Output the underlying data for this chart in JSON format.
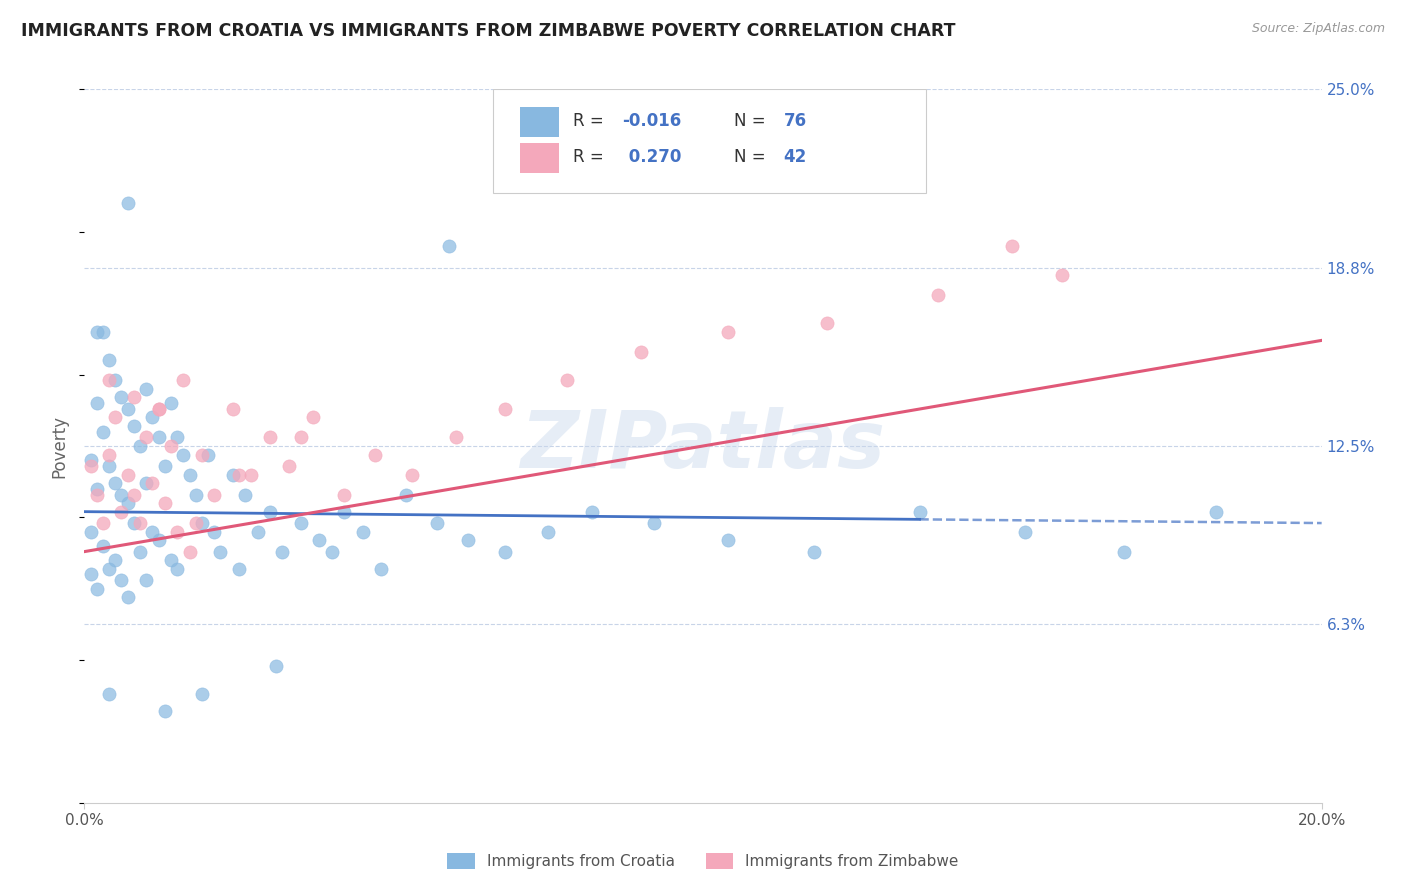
{
  "title": "IMMIGRANTS FROM CROATIA VS IMMIGRANTS FROM ZIMBABWE POVERTY CORRELATION CHART",
  "source": "Source: ZipAtlas.com",
  "ylabel": "Poverty",
  "watermark": "ZIPatlas",
  "xlim": [
    0.0,
    0.2
  ],
  "ylim": [
    0.0,
    0.25
  ],
  "ytick_right_labels": [
    "25.0%",
    "18.8%",
    "12.5%",
    "6.3%"
  ],
  "ytick_right_values": [
    0.25,
    0.1875,
    0.125,
    0.0625
  ],
  "croatia_color": "#88b8e0",
  "zimbabwe_color": "#f4a8bb",
  "trendline_croatia_color": "#4472c4",
  "trendline_zimbabwe_color": "#e05878",
  "background_color": "#ffffff",
  "grid_color": "#c8d4e8",
  "title_color": "#222222",
  "axis_label_color": "#666666",
  "right_axis_color": "#4472c4",
  "croatia_scatter_x": [
    0.001,
    0.001,
    0.001,
    0.002,
    0.002,
    0.002,
    0.003,
    0.003,
    0.003,
    0.004,
    0.004,
    0.004,
    0.005,
    0.005,
    0.005,
    0.006,
    0.006,
    0.006,
    0.007,
    0.007,
    0.007,
    0.008,
    0.008,
    0.009,
    0.009,
    0.01,
    0.01,
    0.01,
    0.011,
    0.011,
    0.012,
    0.012,
    0.013,
    0.014,
    0.014,
    0.015,
    0.015,
    0.016,
    0.017,
    0.018,
    0.019,
    0.02,
    0.021,
    0.022,
    0.024,
    0.025,
    0.026,
    0.028,
    0.03,
    0.032,
    0.035,
    0.038,
    0.04,
    0.042,
    0.045,
    0.048,
    0.052,
    0.057,
    0.062,
    0.068,
    0.075,
    0.082,
    0.092,
    0.104,
    0.118,
    0.135,
    0.152,
    0.168,
    0.183,
    0.059,
    0.031,
    0.019,
    0.013,
    0.007,
    0.004,
    0.002
  ],
  "croatia_scatter_y": [
    0.12,
    0.095,
    0.08,
    0.14,
    0.11,
    0.075,
    0.165,
    0.13,
    0.09,
    0.155,
    0.118,
    0.082,
    0.148,
    0.112,
    0.085,
    0.142,
    0.108,
    0.078,
    0.138,
    0.105,
    0.072,
    0.132,
    0.098,
    0.125,
    0.088,
    0.145,
    0.112,
    0.078,
    0.135,
    0.095,
    0.128,
    0.092,
    0.118,
    0.14,
    0.085,
    0.128,
    0.082,
    0.122,
    0.115,
    0.108,
    0.098,
    0.122,
    0.095,
    0.088,
    0.115,
    0.082,
    0.108,
    0.095,
    0.102,
    0.088,
    0.098,
    0.092,
    0.088,
    0.102,
    0.095,
    0.082,
    0.108,
    0.098,
    0.092,
    0.088,
    0.095,
    0.102,
    0.098,
    0.092,
    0.088,
    0.102,
    0.095,
    0.088,
    0.102,
    0.195,
    0.048,
    0.038,
    0.032,
    0.21,
    0.038,
    0.165
  ],
  "zimbabwe_scatter_x": [
    0.001,
    0.002,
    0.003,
    0.004,
    0.005,
    0.006,
    0.007,
    0.008,
    0.009,
    0.01,
    0.011,
    0.012,
    0.013,
    0.014,
    0.015,
    0.016,
    0.017,
    0.019,
    0.021,
    0.024,
    0.027,
    0.03,
    0.033,
    0.037,
    0.042,
    0.047,
    0.053,
    0.06,
    0.068,
    0.078,
    0.09,
    0.104,
    0.12,
    0.138,
    0.158,
    0.035,
    0.025,
    0.018,
    0.012,
    0.008,
    0.004,
    0.15
  ],
  "zimbabwe_scatter_y": [
    0.118,
    0.108,
    0.098,
    0.122,
    0.135,
    0.102,
    0.115,
    0.142,
    0.098,
    0.128,
    0.112,
    0.138,
    0.105,
    0.125,
    0.095,
    0.148,
    0.088,
    0.122,
    0.108,
    0.138,
    0.115,
    0.128,
    0.118,
    0.135,
    0.108,
    0.122,
    0.115,
    0.128,
    0.138,
    0.148,
    0.158,
    0.165,
    0.168,
    0.178,
    0.185,
    0.128,
    0.115,
    0.098,
    0.138,
    0.108,
    0.148,
    0.195
  ],
  "croatia_trend_x0": 0.0,
  "croatia_trend_x1": 0.2,
  "croatia_trend_y0": 0.102,
  "croatia_trend_y1": 0.098,
  "zimbabwe_trend_x0": 0.0,
  "zimbabwe_trend_x1": 0.2,
  "zimbabwe_trend_y0": 0.088,
  "zimbabwe_trend_y1": 0.162
}
